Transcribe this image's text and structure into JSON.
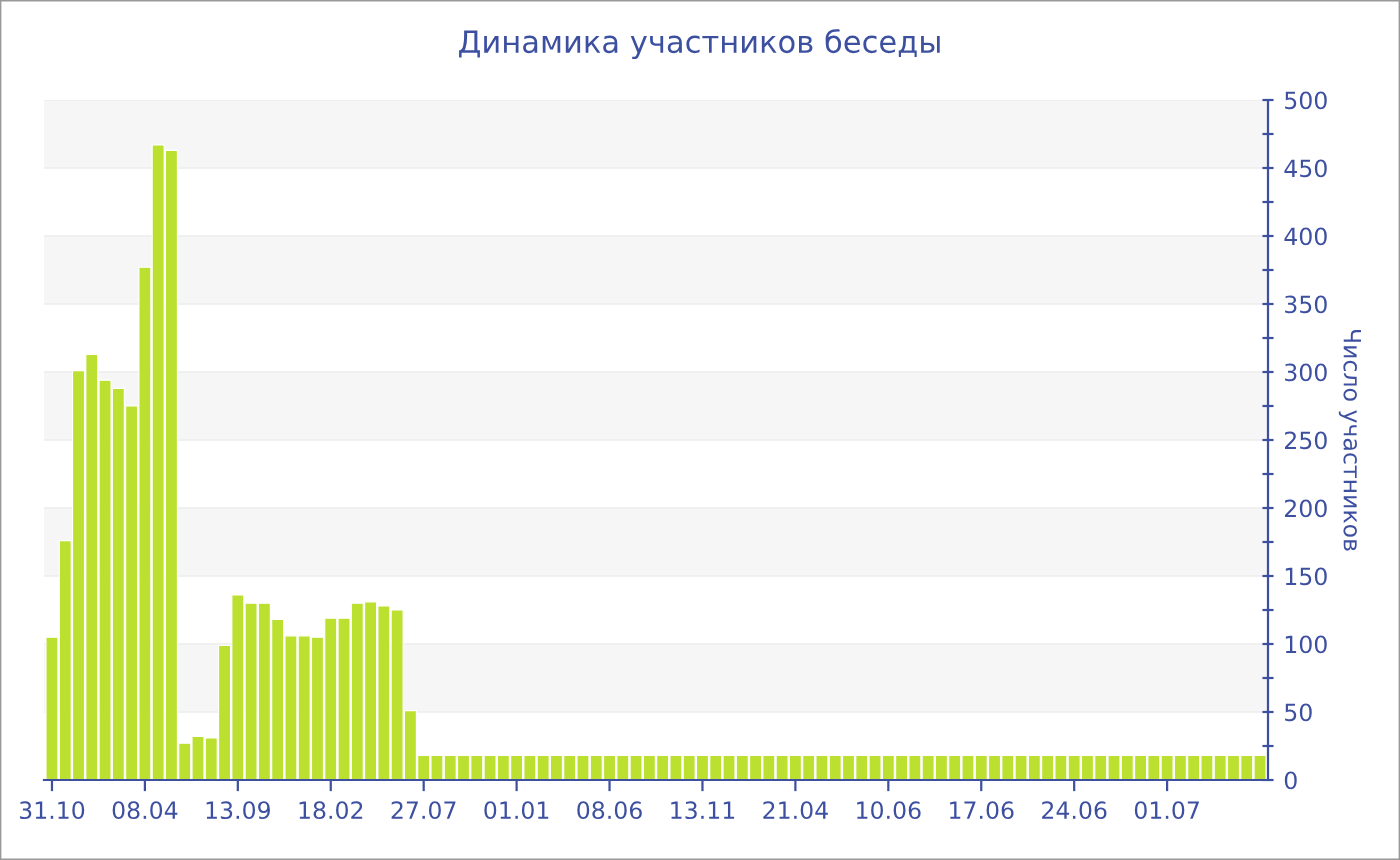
{
  "chart_data": {
    "type": "bar",
    "title": "Динамика участников беседы",
    "ylabel": "Число участников",
    "categories": [
      "31.10",
      null,
      null,
      null,
      null,
      null,
      null,
      "08.04",
      null,
      null,
      null,
      null,
      null,
      null,
      "13.09",
      null,
      null,
      null,
      null,
      null,
      null,
      "18.02",
      null,
      null,
      null,
      null,
      null,
      null,
      "27.07",
      null,
      null,
      null,
      null,
      null,
      null,
      "01.01",
      null,
      null,
      null,
      null,
      null,
      null,
      "08.06",
      null,
      null,
      null,
      null,
      null,
      null,
      "13.11",
      null,
      null,
      null,
      null,
      null,
      null,
      "21.04",
      null,
      null,
      null,
      null,
      null,
      null,
      "10.06",
      null,
      null,
      null,
      null,
      null,
      null,
      "17.06",
      null,
      null,
      null,
      null,
      null,
      null,
      "24.06",
      null,
      null,
      null,
      null,
      null,
      null,
      "01.07",
      null,
      null,
      null,
      null,
      null,
      null,
      null
    ],
    "values": [
      105,
      176,
      301,
      313,
      294,
      288,
      275,
      377,
      467,
      463,
      27,
      32,
      31,
      99,
      136,
      130,
      130,
      118,
      106,
      106,
      105,
      119,
      119,
      130,
      131,
      128,
      125,
      51,
      18,
      18,
      18,
      18,
      18,
      18,
      18,
      18,
      18,
      18,
      18,
      18,
      18,
      18,
      18,
      18,
      18,
      18,
      18,
      18,
      18,
      18,
      18,
      18,
      18,
      18,
      18,
      18,
      18,
      18,
      18,
      18,
      18,
      18,
      18,
      18,
      18,
      18,
      18,
      18,
      18,
      18,
      18,
      18,
      18,
      18,
      18,
      18,
      18,
      18,
      18,
      18,
      18,
      18,
      18,
      18,
      18,
      18,
      18,
      18,
      18,
      18,
      18,
      18
    ],
    "color": "#bce030",
    "ylim": [
      0,
      500
    ],
    "yticks": [
      0,
      {
        "value": 25,
        "label": null
      },
      50,
      {
        "value": 75,
        "label": null
      },
      100,
      {
        "value": 125,
        "label": null
      },
      150,
      {
        "value": 175,
        "label": null
      },
      200,
      {
        "value": 225,
        "label": null
      },
      250,
      {
        "value": 275,
        "label": null
      },
      300,
      {
        "value": 325,
        "label": null
      },
      350,
      {
        "value": 375,
        "label": null
      },
      400,
      {
        "value": 425,
        "label": null
      },
      450,
      {
        "value": 475,
        "label": null
      },
      500
    ],
    "grid": "y"
  }
}
